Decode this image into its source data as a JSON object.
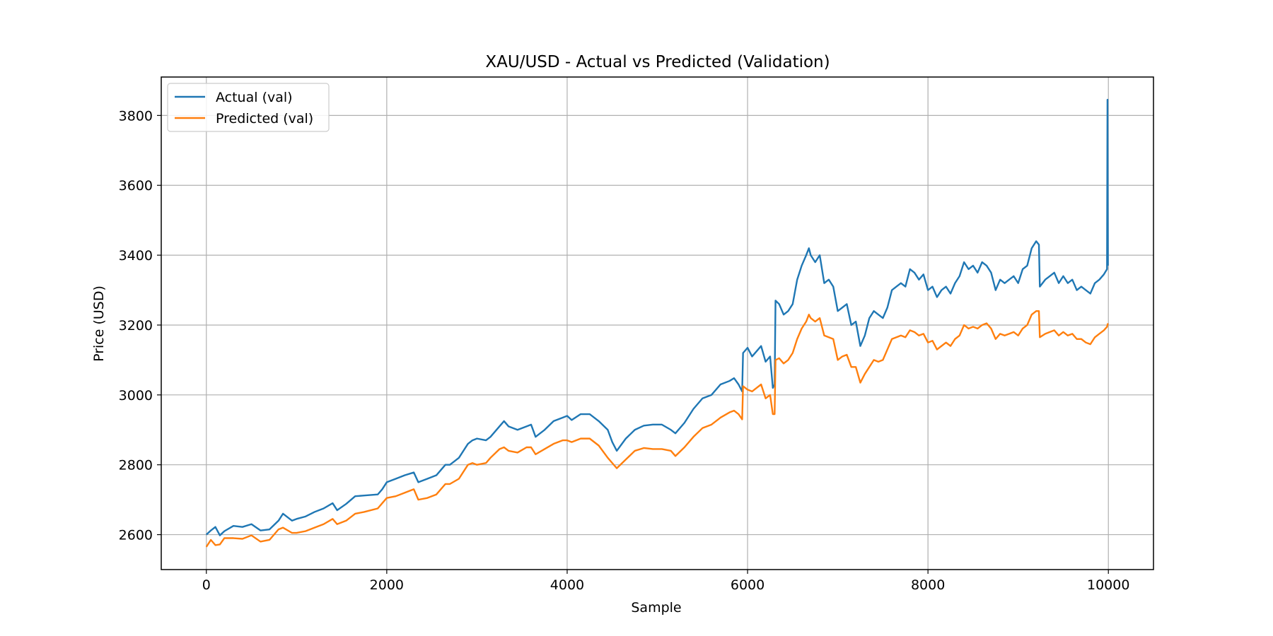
{
  "chart_data": {
    "type": "line",
    "title": "XAU/USD - Actual vs Predicted (Validation)",
    "xlabel": "Sample",
    "ylabel": "Price (USD)",
    "xlim": [
      -500,
      10500
    ],
    "ylim": [
      2500,
      3910
    ],
    "xticks": [
      0,
      2000,
      4000,
      6000,
      8000,
      10000
    ],
    "yticks": [
      2600,
      2800,
      3000,
      3200,
      3400,
      3600,
      3800
    ],
    "grid": true,
    "legend_position": "top-left",
    "series": [
      {
        "name": "Actual (val)",
        "color": "#1f77b4",
        "points": [
          [
            0,
            2600
          ],
          [
            50,
            2612
          ],
          [
            100,
            2622
          ],
          [
            150,
            2598
          ],
          [
            200,
            2610
          ],
          [
            300,
            2625
          ],
          [
            400,
            2622
          ],
          [
            500,
            2630
          ],
          [
            600,
            2612
          ],
          [
            700,
            2615
          ],
          [
            800,
            2640
          ],
          [
            850,
            2660
          ],
          [
            950,
            2640
          ],
          [
            1000,
            2645
          ],
          [
            1100,
            2652
          ],
          [
            1200,
            2665
          ],
          [
            1300,
            2675
          ],
          [
            1400,
            2690
          ],
          [
            1450,
            2670
          ],
          [
            1550,
            2688
          ],
          [
            1650,
            2710
          ],
          [
            1750,
            2712
          ],
          [
            1900,
            2715
          ],
          [
            1950,
            2730
          ],
          [
            2000,
            2750
          ],
          [
            2100,
            2760
          ],
          [
            2200,
            2770
          ],
          [
            2300,
            2778
          ],
          [
            2350,
            2750
          ],
          [
            2450,
            2760
          ],
          [
            2550,
            2770
          ],
          [
            2650,
            2800
          ],
          [
            2700,
            2800
          ],
          [
            2800,
            2820
          ],
          [
            2900,
            2860
          ],
          [
            2950,
            2870
          ],
          [
            3000,
            2875
          ],
          [
            3100,
            2870
          ],
          [
            3150,
            2880
          ],
          [
            3250,
            2910
          ],
          [
            3300,
            2925
          ],
          [
            3350,
            2910
          ],
          [
            3450,
            2900
          ],
          [
            3550,
            2910
          ],
          [
            3600,
            2915
          ],
          [
            3650,
            2880
          ],
          [
            3750,
            2900
          ],
          [
            3850,
            2925
          ],
          [
            3950,
            2935
          ],
          [
            4000,
            2940
          ],
          [
            4050,
            2928
          ],
          [
            4150,
            2945
          ],
          [
            4250,
            2945
          ],
          [
            4350,
            2925
          ],
          [
            4450,
            2900
          ],
          [
            4500,
            2865
          ],
          [
            4550,
            2840
          ],
          [
            4650,
            2875
          ],
          [
            4750,
            2900
          ],
          [
            4850,
            2912
          ],
          [
            4950,
            2915
          ],
          [
            5050,
            2915
          ],
          [
            5150,
            2900
          ],
          [
            5200,
            2890
          ],
          [
            5300,
            2920
          ],
          [
            5400,
            2960
          ],
          [
            5500,
            2990
          ],
          [
            5600,
            3000
          ],
          [
            5700,
            3030
          ],
          [
            5800,
            3040
          ],
          [
            5850,
            3048
          ],
          [
            5900,
            3030
          ],
          [
            5940,
            3010
          ],
          [
            5950,
            3120
          ],
          [
            6000,
            3135
          ],
          [
            6050,
            3110
          ],
          [
            6100,
            3125
          ],
          [
            6150,
            3140
          ],
          [
            6200,
            3095
          ],
          [
            6250,
            3110
          ],
          [
            6280,
            3020
          ],
          [
            6300,
            3030
          ],
          [
            6310,
            3270
          ],
          [
            6350,
            3260
          ],
          [
            6400,
            3230
          ],
          [
            6450,
            3240
          ],
          [
            6500,
            3260
          ],
          [
            6550,
            3330
          ],
          [
            6600,
            3370
          ],
          [
            6650,
            3400
          ],
          [
            6680,
            3420
          ],
          [
            6700,
            3400
          ],
          [
            6750,
            3380
          ],
          [
            6800,
            3400
          ],
          [
            6850,
            3320
          ],
          [
            6900,
            3330
          ],
          [
            6950,
            3310
          ],
          [
            7000,
            3240
          ],
          [
            7050,
            3250
          ],
          [
            7100,
            3260
          ],
          [
            7150,
            3200
          ],
          [
            7200,
            3210
          ],
          [
            7250,
            3140
          ],
          [
            7300,
            3170
          ],
          [
            7350,
            3220
          ],
          [
            7400,
            3240
          ],
          [
            7450,
            3230
          ],
          [
            7500,
            3220
          ],
          [
            7550,
            3250
          ],
          [
            7600,
            3300
          ],
          [
            7650,
            3310
          ],
          [
            7700,
            3320
          ],
          [
            7750,
            3310
          ],
          [
            7800,
            3360
          ],
          [
            7850,
            3350
          ],
          [
            7900,
            3330
          ],
          [
            7950,
            3345
          ],
          [
            8000,
            3300
          ],
          [
            8050,
            3310
          ],
          [
            8100,
            3280
          ],
          [
            8150,
            3300
          ],
          [
            8200,
            3310
          ],
          [
            8250,
            3290
          ],
          [
            8300,
            3320
          ],
          [
            8350,
            3340
          ],
          [
            8400,
            3380
          ],
          [
            8450,
            3360
          ],
          [
            8500,
            3370
          ],
          [
            8550,
            3350
          ],
          [
            8600,
            3380
          ],
          [
            8650,
            3370
          ],
          [
            8700,
            3350
          ],
          [
            8750,
            3300
          ],
          [
            8800,
            3330
          ],
          [
            8850,
            3320
          ],
          [
            8900,
            3330
          ],
          [
            8950,
            3340
          ],
          [
            9000,
            3320
          ],
          [
            9050,
            3360
          ],
          [
            9100,
            3370
          ],
          [
            9150,
            3420
          ],
          [
            9200,
            3440
          ],
          [
            9230,
            3430
          ],
          [
            9240,
            3310
          ],
          [
            9300,
            3330
          ],
          [
            9350,
            3340
          ],
          [
            9400,
            3350
          ],
          [
            9450,
            3320
          ],
          [
            9500,
            3340
          ],
          [
            9550,
            3320
          ],
          [
            9600,
            3330
          ],
          [
            9650,
            3300
          ],
          [
            9700,
            3310
          ],
          [
            9750,
            3300
          ],
          [
            9800,
            3290
          ],
          [
            9850,
            3320
          ],
          [
            9900,
            3330
          ],
          [
            9950,
            3345
          ],
          [
            9985,
            3360
          ],
          [
            9990,
            3845
          ],
          [
            9995,
            3370
          ]
        ]
      },
      {
        "name": "Predicted (val)",
        "color": "#ff7f0e",
        "points": [
          [
            0,
            2565
          ],
          [
            50,
            2585
          ],
          [
            100,
            2570
          ],
          [
            150,
            2572
          ],
          [
            200,
            2590
          ],
          [
            300,
            2590
          ],
          [
            400,
            2588
          ],
          [
            500,
            2598
          ],
          [
            600,
            2580
          ],
          [
            700,
            2585
          ],
          [
            800,
            2615
          ],
          [
            850,
            2620
          ],
          [
            950,
            2605
          ],
          [
            1000,
            2605
          ],
          [
            1100,
            2610
          ],
          [
            1200,
            2620
          ],
          [
            1300,
            2630
          ],
          [
            1400,
            2645
          ],
          [
            1450,
            2630
          ],
          [
            1550,
            2640
          ],
          [
            1650,
            2660
          ],
          [
            1750,
            2665
          ],
          [
            1900,
            2675
          ],
          [
            1950,
            2690
          ],
          [
            2000,
            2705
          ],
          [
            2100,
            2710
          ],
          [
            2200,
            2720
          ],
          [
            2300,
            2730
          ],
          [
            2350,
            2700
          ],
          [
            2450,
            2705
          ],
          [
            2550,
            2715
          ],
          [
            2650,
            2745
          ],
          [
            2700,
            2745
          ],
          [
            2800,
            2760
          ],
          [
            2900,
            2800
          ],
          [
            2950,
            2805
          ],
          [
            3000,
            2800
          ],
          [
            3100,
            2805
          ],
          [
            3150,
            2820
          ],
          [
            3250,
            2845
          ],
          [
            3300,
            2850
          ],
          [
            3350,
            2840
          ],
          [
            3450,
            2835
          ],
          [
            3550,
            2850
          ],
          [
            3600,
            2850
          ],
          [
            3650,
            2830
          ],
          [
            3750,
            2845
          ],
          [
            3850,
            2860
          ],
          [
            3950,
            2870
          ],
          [
            4000,
            2870
          ],
          [
            4050,
            2865
          ],
          [
            4150,
            2875
          ],
          [
            4250,
            2875
          ],
          [
            4350,
            2855
          ],
          [
            4450,
            2820
          ],
          [
            4500,
            2805
          ],
          [
            4550,
            2790
          ],
          [
            4650,
            2815
          ],
          [
            4750,
            2840
          ],
          [
            4850,
            2848
          ],
          [
            4950,
            2845
          ],
          [
            5050,
            2845
          ],
          [
            5150,
            2840
          ],
          [
            5200,
            2825
          ],
          [
            5300,
            2850
          ],
          [
            5400,
            2880
          ],
          [
            5500,
            2905
          ],
          [
            5600,
            2915
          ],
          [
            5700,
            2935
          ],
          [
            5800,
            2950
          ],
          [
            5850,
            2955
          ],
          [
            5900,
            2945
          ],
          [
            5940,
            2930
          ],
          [
            5950,
            3025
          ],
          [
            6000,
            3015
          ],
          [
            6050,
            3010
          ],
          [
            6100,
            3020
          ],
          [
            6150,
            3030
          ],
          [
            6200,
            2990
          ],
          [
            6250,
            3000
          ],
          [
            6280,
            2945
          ],
          [
            6300,
            2945
          ],
          [
            6310,
            3100
          ],
          [
            6350,
            3105
          ],
          [
            6400,
            3090
          ],
          [
            6450,
            3100
          ],
          [
            6500,
            3120
          ],
          [
            6550,
            3160
          ],
          [
            6600,
            3190
          ],
          [
            6650,
            3210
          ],
          [
            6680,
            3230
          ],
          [
            6700,
            3220
          ],
          [
            6750,
            3210
          ],
          [
            6800,
            3220
          ],
          [
            6850,
            3170
          ],
          [
            6900,
            3165
          ],
          [
            6950,
            3160
          ],
          [
            7000,
            3100
          ],
          [
            7050,
            3110
          ],
          [
            7100,
            3115
          ],
          [
            7150,
            3080
          ],
          [
            7200,
            3080
          ],
          [
            7250,
            3035
          ],
          [
            7300,
            3060
          ],
          [
            7350,
            3080
          ],
          [
            7400,
            3100
          ],
          [
            7450,
            3095
          ],
          [
            7500,
            3100
          ],
          [
            7550,
            3130
          ],
          [
            7600,
            3160
          ],
          [
            7650,
            3165
          ],
          [
            7700,
            3170
          ],
          [
            7750,
            3165
          ],
          [
            7800,
            3185
          ],
          [
            7850,
            3180
          ],
          [
            7900,
            3170
          ],
          [
            7950,
            3175
          ],
          [
            8000,
            3150
          ],
          [
            8050,
            3155
          ],
          [
            8100,
            3130
          ],
          [
            8150,
            3140
          ],
          [
            8200,
            3150
          ],
          [
            8250,
            3140
          ],
          [
            8300,
            3160
          ],
          [
            8350,
            3170
          ],
          [
            8400,
            3200
          ],
          [
            8450,
            3190
          ],
          [
            8500,
            3195
          ],
          [
            8550,
            3190
          ],
          [
            8600,
            3200
          ],
          [
            8650,
            3205
          ],
          [
            8700,
            3190
          ],
          [
            8750,
            3160
          ],
          [
            8800,
            3175
          ],
          [
            8850,
            3170
          ],
          [
            8900,
            3175
          ],
          [
            8950,
            3180
          ],
          [
            9000,
            3170
          ],
          [
            9050,
            3190
          ],
          [
            9100,
            3200
          ],
          [
            9150,
            3230
          ],
          [
            9200,
            3240
          ],
          [
            9230,
            3240
          ],
          [
            9240,
            3165
          ],
          [
            9300,
            3175
          ],
          [
            9350,
            3180
          ],
          [
            9400,
            3185
          ],
          [
            9450,
            3170
          ],
          [
            9500,
            3180
          ],
          [
            9550,
            3170
          ],
          [
            9600,
            3175
          ],
          [
            9650,
            3160
          ],
          [
            9700,
            3160
          ],
          [
            9750,
            3150
          ],
          [
            9800,
            3145
          ],
          [
            9850,
            3165
          ],
          [
            9900,
            3175
          ],
          [
            9950,
            3185
          ],
          [
            9985,
            3195
          ],
          [
            9995,
            3205
          ]
        ]
      }
    ]
  }
}
